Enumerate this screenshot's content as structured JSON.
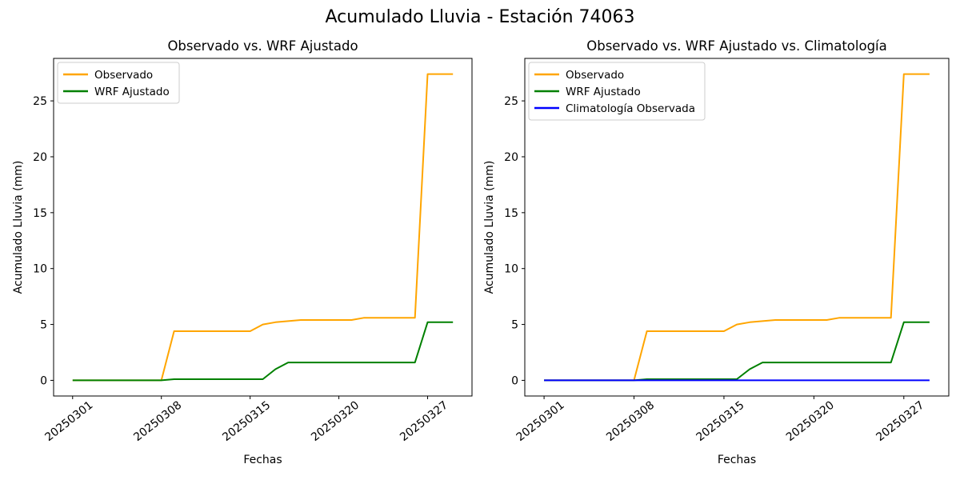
{
  "figure": {
    "suptitle": "Acumulado Lluvia - Estación 74063",
    "background": "#ffffff",
    "text_color": "#000000",
    "spine_color": "#000000"
  },
  "chart_data": [
    {
      "type": "line",
      "title": "Observado vs. WRF Ajustado",
      "xlabel": "Fechas",
      "ylabel": "Acumulado Lluvia (mm)",
      "grid": false,
      "legend_position": "upper-left",
      "yticks": [
        0,
        5,
        10,
        15,
        20,
        25
      ],
      "ylim": [
        -1.4,
        28.8
      ],
      "xlim_index": [
        -1.5,
        31.5
      ],
      "xtick_indices": [
        0,
        7,
        14,
        21,
        28
      ],
      "xtick_labels": [
        "20250301",
        "20250308",
        "20250315",
        "20250320",
        "20250327"
      ],
      "series": [
        {
          "name": "Observado",
          "color": "#FFA500",
          "values": [
            0,
            0,
            0,
            0,
            0,
            0,
            0,
            0,
            4.4,
            4.4,
            4.4,
            4.4,
            4.4,
            4.4,
            4.4,
            5.0,
            5.2,
            5.3,
            5.4,
            5.4,
            5.4,
            5.4,
            5.4,
            5.6,
            5.6,
            5.6,
            5.6,
            5.6,
            27.4,
            27.4,
            27.4
          ]
        },
        {
          "name": "WRF Ajustado",
          "color": "#008000",
          "values": [
            0,
            0,
            0,
            0,
            0,
            0,
            0,
            0,
            0.1,
            0.1,
            0.1,
            0.1,
            0.1,
            0.1,
            0.1,
            0.1,
            1.0,
            1.6,
            1.6,
            1.6,
            1.6,
            1.6,
            1.6,
            1.6,
            1.6,
            1.6,
            1.6,
            1.6,
            5.2,
            5.2,
            5.2
          ]
        }
      ]
    },
    {
      "type": "line",
      "title": "Observado vs. WRF Ajustado vs. Climatología",
      "xlabel": "Fechas",
      "ylabel": "Acumulado Lluvia (mm)",
      "grid": false,
      "legend_position": "upper-left",
      "yticks": [
        0,
        5,
        10,
        15,
        20,
        25
      ],
      "ylim": [
        -1.4,
        28.8
      ],
      "xlim_index": [
        -1.5,
        31.5
      ],
      "xtick_indices": [
        0,
        7,
        14,
        21,
        28
      ],
      "xtick_labels": [
        "20250301",
        "20250308",
        "20250315",
        "20250320",
        "20250327"
      ],
      "series": [
        {
          "name": "Observado",
          "color": "#FFA500",
          "values": [
            0,
            0,
            0,
            0,
            0,
            0,
            0,
            0,
            4.4,
            4.4,
            4.4,
            4.4,
            4.4,
            4.4,
            4.4,
            5.0,
            5.2,
            5.3,
            5.4,
            5.4,
            5.4,
            5.4,
            5.4,
            5.6,
            5.6,
            5.6,
            5.6,
            5.6,
            27.4,
            27.4,
            27.4
          ]
        },
        {
          "name": "WRF Ajustado",
          "color": "#008000",
          "values": [
            0,
            0,
            0,
            0,
            0,
            0,
            0,
            0,
            0.1,
            0.1,
            0.1,
            0.1,
            0.1,
            0.1,
            0.1,
            0.1,
            1.0,
            1.6,
            1.6,
            1.6,
            1.6,
            1.6,
            1.6,
            1.6,
            1.6,
            1.6,
            1.6,
            1.6,
            5.2,
            5.2,
            5.2
          ]
        },
        {
          "name": "Climatología Observada",
          "color": "#0000FF",
          "values": [
            0,
            0,
            0,
            0,
            0,
            0,
            0,
            0,
            0,
            0,
            0,
            0,
            0,
            0,
            0,
            0,
            0,
            0,
            0,
            0,
            0,
            0,
            0,
            0,
            0,
            0,
            0,
            0,
            0,
            0,
            0
          ]
        }
      ]
    }
  ]
}
